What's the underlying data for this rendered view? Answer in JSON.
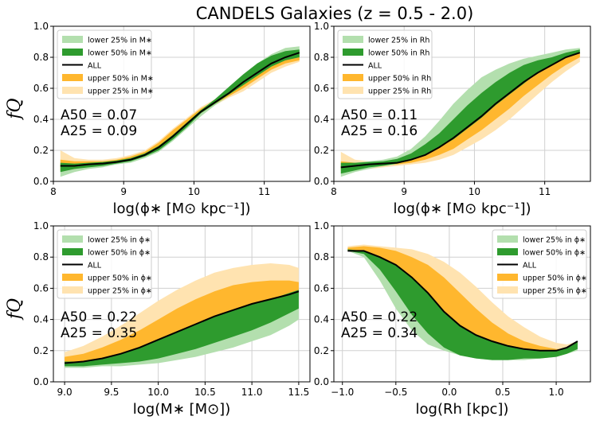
{
  "figure_title": "CANDELS Galaxies (z = 0.5 - 2.0)",
  "colors": {
    "lower25": "#b3dfae",
    "lower50": "#2e9b2e",
    "all": "#000000",
    "upper50": "#ffb72e",
    "upper25": "#ffe3b0",
    "grid": "#d0d0d0"
  },
  "chart_data": [
    {
      "id": "top-left",
      "type": "area",
      "xlabel": "log(ϕ∗ [M⊙ kpc⁻¹])",
      "ylabel": "fQ",
      "xlim": [
        8.0,
        11.65
      ],
      "ylim": [
        0.0,
        1.0
      ],
      "xticks": [
        "8",
        "9",
        "10",
        "11"
      ],
      "yticks": [
        "0.0",
        "0.2",
        "0.4",
        "0.6",
        "0.8",
        "1.0"
      ],
      "annotation": [
        "A50 = 0.07",
        "A25 = 0.09"
      ],
      "legend": [
        "lower 25%  in M∗",
        "lower 50%  in M∗",
        "ALL",
        "upper 50%  in M∗",
        "upper 25%  in M∗"
      ],
      "legend_loc": "upper-left",
      "x": [
        8.1,
        8.3,
        8.5,
        8.7,
        8.9,
        9.1,
        9.3,
        9.5,
        9.7,
        9.9,
        10.1,
        10.3,
        10.5,
        10.7,
        10.9,
        11.1,
        11.3,
        11.5
      ],
      "series": [
        {
          "name": "ALL",
          "values": [
            0.1,
            0.1,
            0.11,
            0.115,
            0.125,
            0.14,
            0.17,
            0.22,
            0.29,
            0.37,
            0.45,
            0.51,
            0.57,
            0.64,
            0.7,
            0.76,
            0.8,
            0.83
          ]
        },
        {
          "name": "lower 25% low",
          "values": [
            0.03,
            0.06,
            0.08,
            0.09,
            0.11,
            0.12,
            0.15,
            0.19,
            0.26,
            0.34,
            0.42,
            0.49,
            0.55,
            0.61,
            0.67,
            0.72,
            0.77,
            0.79
          ]
        },
        {
          "name": "lower 25% high",
          "values": [
            0.11,
            0.11,
            0.12,
            0.12,
            0.13,
            0.14,
            0.17,
            0.21,
            0.28,
            0.36,
            0.45,
            0.52,
            0.6,
            0.68,
            0.76,
            0.82,
            0.86,
            0.87
          ]
        },
        {
          "name": "lower 50% low",
          "values": [
            0.06,
            0.08,
            0.09,
            0.1,
            0.115,
            0.13,
            0.16,
            0.2,
            0.27,
            0.35,
            0.44,
            0.5,
            0.56,
            0.62,
            0.68,
            0.74,
            0.78,
            0.8
          ]
        },
        {
          "name": "lower 50% high",
          "values": [
            0.12,
            0.115,
            0.12,
            0.125,
            0.135,
            0.15,
            0.18,
            0.23,
            0.3,
            0.38,
            0.46,
            0.53,
            0.61,
            0.69,
            0.76,
            0.81,
            0.84,
            0.85
          ]
        },
        {
          "name": "upper 50% low",
          "values": [
            0.07,
            0.08,
            0.1,
            0.11,
            0.12,
            0.14,
            0.17,
            0.22,
            0.29,
            0.37,
            0.44,
            0.5,
            0.55,
            0.6,
            0.66,
            0.72,
            0.76,
            0.78
          ]
        },
        {
          "name": "upper 50% high",
          "values": [
            0.14,
            0.13,
            0.13,
            0.13,
            0.14,
            0.16,
            0.19,
            0.25,
            0.33,
            0.4,
            0.47,
            0.52,
            0.58,
            0.64,
            0.7,
            0.76,
            0.8,
            0.82
          ]
        },
        {
          "name": "upper 25% low",
          "values": [
            0.06,
            0.07,
            0.09,
            0.1,
            0.11,
            0.13,
            0.16,
            0.21,
            0.28,
            0.36,
            0.43,
            0.49,
            0.54,
            0.58,
            0.64,
            0.7,
            0.74,
            0.77
          ]
        },
        {
          "name": "upper 25% high",
          "values": [
            0.2,
            0.15,
            0.14,
            0.14,
            0.15,
            0.17,
            0.2,
            0.26,
            0.34,
            0.41,
            0.48,
            0.53,
            0.59,
            0.65,
            0.71,
            0.77,
            0.81,
            0.83
          ]
        }
      ]
    },
    {
      "id": "top-right",
      "type": "area",
      "xlabel": "log(ϕ∗ [M⊙ kpc⁻¹])",
      "ylabel": "",
      "xlim": [
        8.0,
        11.65
      ],
      "ylim": [
        0.0,
        1.0
      ],
      "xticks": [
        "8",
        "9",
        "10",
        "11"
      ],
      "yticks": [
        "0.0",
        "0.2",
        "0.4",
        "0.6",
        "0.8",
        "1.0"
      ],
      "annotation": [
        "A50 = 0.11",
        "A25 = 0.16"
      ],
      "legend": [
        "lower 25%  in Rh",
        "lower 50%  in Rh",
        "ALL",
        "upper 50%  in Rh",
        "upper 25%  in Rh"
      ],
      "legend_loc": "upper-left",
      "x": [
        8.1,
        8.3,
        8.5,
        8.7,
        8.9,
        9.1,
        9.3,
        9.5,
        9.7,
        9.9,
        10.1,
        10.3,
        10.5,
        10.7,
        10.9,
        11.1,
        11.3,
        11.5
      ],
      "series": [
        {
          "name": "ALL",
          "values": [
            0.09,
            0.1,
            0.11,
            0.115,
            0.12,
            0.14,
            0.17,
            0.22,
            0.28,
            0.35,
            0.42,
            0.5,
            0.57,
            0.64,
            0.7,
            0.75,
            0.8,
            0.83
          ]
        },
        {
          "name": "lower 25% low",
          "values": [
            0.03,
            0.06,
            0.08,
            0.1,
            0.11,
            0.13,
            0.16,
            0.21,
            0.26,
            0.32,
            0.39,
            0.47,
            0.55,
            0.63,
            0.7,
            0.76,
            0.81,
            0.84
          ]
        },
        {
          "name": "lower 25% high",
          "values": [
            0.11,
            0.12,
            0.13,
            0.14,
            0.16,
            0.21,
            0.29,
            0.39,
            0.5,
            0.59,
            0.67,
            0.72,
            0.76,
            0.79,
            0.81,
            0.83,
            0.85,
            0.86
          ]
        },
        {
          "name": "lower 50% low",
          "values": [
            0.05,
            0.07,
            0.09,
            0.1,
            0.115,
            0.135,
            0.17,
            0.22,
            0.27,
            0.34,
            0.41,
            0.49,
            0.56,
            0.63,
            0.7,
            0.75,
            0.8,
            0.83
          ]
        },
        {
          "name": "lower 50% high",
          "values": [
            0.12,
            0.12,
            0.125,
            0.13,
            0.145,
            0.18,
            0.24,
            0.31,
            0.4,
            0.49,
            0.57,
            0.64,
            0.7,
            0.75,
            0.78,
            0.8,
            0.83,
            0.85
          ]
        },
        {
          "name": "upper 50% low",
          "values": [
            0.07,
            0.08,
            0.1,
            0.11,
            0.11,
            0.12,
            0.14,
            0.17,
            0.21,
            0.27,
            0.33,
            0.4,
            0.47,
            0.55,
            0.62,
            0.69,
            0.75,
            0.8
          ]
        },
        {
          "name": "upper 50% high",
          "values": [
            0.13,
            0.12,
            0.12,
            0.12,
            0.13,
            0.14,
            0.17,
            0.22,
            0.28,
            0.35,
            0.42,
            0.5,
            0.57,
            0.64,
            0.7,
            0.75,
            0.8,
            0.83
          ]
        },
        {
          "name": "upper 25% low",
          "values": [
            0.06,
            0.07,
            0.08,
            0.09,
            0.1,
            0.11,
            0.12,
            0.14,
            0.17,
            0.22,
            0.27,
            0.33,
            0.4,
            0.48,
            0.56,
            0.64,
            0.71,
            0.77
          ]
        },
        {
          "name": "upper 25% high",
          "values": [
            0.19,
            0.14,
            0.13,
            0.13,
            0.14,
            0.15,
            0.17,
            0.22,
            0.28,
            0.35,
            0.42,
            0.49,
            0.56,
            0.63,
            0.69,
            0.74,
            0.79,
            0.83
          ]
        }
      ]
    },
    {
      "id": "bottom-left",
      "type": "area",
      "xlabel": "log(M∗ [M⊙])",
      "ylabel": "fQ",
      "xlim": [
        8.88,
        11.62
      ],
      "ylim": [
        0.0,
        1.0
      ],
      "xticks": [
        "9.0",
        "9.5",
        "10.0",
        "10.5",
        "11.0",
        "11.5"
      ],
      "yticks": [
        "0.0",
        "0.2",
        "0.4",
        "0.6",
        "0.8",
        "1.0"
      ],
      "annotation": [
        "A50 = 0.22",
        "A25 = 0.35"
      ],
      "legend": [
        "lower 25%  in ϕ∗",
        "lower 50%  in ϕ∗",
        "ALL",
        "upper 50%  in ϕ∗",
        "upper 25%  in ϕ∗"
      ],
      "legend_loc": "upper-left",
      "x": [
        9.0,
        9.2,
        9.4,
        9.6,
        9.8,
        10.0,
        10.2,
        10.4,
        10.6,
        10.8,
        11.0,
        11.2,
        11.4,
        11.5
      ],
      "series": [
        {
          "name": "ALL",
          "values": [
            0.12,
            0.13,
            0.15,
            0.18,
            0.22,
            0.27,
            0.32,
            0.37,
            0.42,
            0.46,
            0.5,
            0.53,
            0.56,
            0.58
          ]
        },
        {
          "name": "lower 25% low",
          "values": [
            0.09,
            0.09,
            0.1,
            0.1,
            0.11,
            0.12,
            0.14,
            0.16,
            0.19,
            0.22,
            0.26,
            0.3,
            0.36,
            0.4
          ]
        },
        {
          "name": "lower 25% high",
          "values": [
            0.12,
            0.12,
            0.14,
            0.16,
            0.19,
            0.23,
            0.28,
            0.33,
            0.38,
            0.42,
            0.46,
            0.5,
            0.54,
            0.57
          ]
        },
        {
          "name": "lower 50% low",
          "values": [
            0.1,
            0.1,
            0.11,
            0.12,
            0.13,
            0.15,
            0.18,
            0.21,
            0.25,
            0.29,
            0.33,
            0.38,
            0.44,
            0.47
          ]
        },
        {
          "name": "lower 50% high",
          "values": [
            0.13,
            0.13,
            0.15,
            0.18,
            0.22,
            0.27,
            0.32,
            0.37,
            0.42,
            0.46,
            0.5,
            0.53,
            0.57,
            0.59
          ]
        },
        {
          "name": "upper 50% low",
          "values": [
            0.12,
            0.13,
            0.15,
            0.18,
            0.22,
            0.27,
            0.32,
            0.37,
            0.42,
            0.46,
            0.5,
            0.53,
            0.56,
            0.58
          ]
        },
        {
          "name": "upper 50% high",
          "values": [
            0.16,
            0.18,
            0.22,
            0.27,
            0.33,
            0.4,
            0.47,
            0.53,
            0.58,
            0.62,
            0.64,
            0.65,
            0.65,
            0.64
          ]
        },
        {
          "name": "upper 25% low",
          "values": [
            0.12,
            0.13,
            0.15,
            0.18,
            0.22,
            0.27,
            0.32,
            0.37,
            0.42,
            0.46,
            0.5,
            0.53,
            0.56,
            0.58
          ]
        },
        {
          "name": "upper 25% high",
          "values": [
            0.19,
            0.23,
            0.29,
            0.36,
            0.44,
            0.52,
            0.59,
            0.65,
            0.7,
            0.73,
            0.75,
            0.76,
            0.75,
            0.73
          ]
        }
      ]
    },
    {
      "id": "bottom-right",
      "type": "area",
      "xlabel": "log(Rh [kpc])",
      "ylabel": "",
      "xlim": [
        -1.08,
        1.32
      ],
      "ylim": [
        0.0,
        1.0
      ],
      "xticks": [
        "−1.0",
        "−0.5",
        "0.0",
        "0.5",
        "1.0"
      ],
      "yticks": [
        "0.0",
        "0.2",
        "0.4",
        "0.6",
        "0.8",
        "1.0"
      ],
      "annotation": [
        "A50 = 0.22",
        "A25 = 0.34"
      ],
      "legend": [
        "lower 25%  in ϕ∗",
        "lower 50%  in ϕ∗",
        "ALL",
        "upper 50%  in ϕ∗",
        "upper 25%  in ϕ∗"
      ],
      "legend_loc": "upper-right",
      "x": [
        -0.95,
        -0.8,
        -0.65,
        -0.5,
        -0.35,
        -0.2,
        -0.05,
        0.1,
        0.25,
        0.4,
        0.55,
        0.7,
        0.85,
        1.0,
        1.1,
        1.2
      ],
      "series": [
        {
          "name": "ALL",
          "values": [
            0.84,
            0.84,
            0.8,
            0.75,
            0.67,
            0.57,
            0.45,
            0.36,
            0.3,
            0.26,
            0.23,
            0.21,
            0.2,
            0.2,
            0.22,
            0.26
          ]
        },
        {
          "name": "lower 25% low",
          "values": [
            0.84,
            0.8,
            0.65,
            0.47,
            0.33,
            0.24,
            0.2,
            0.17,
            0.15,
            0.14,
            0.14,
            0.14,
            0.15,
            0.16,
            0.18,
            0.2
          ]
        },
        {
          "name": "lower 25% high",
          "values": [
            0.85,
            0.84,
            0.8,
            0.75,
            0.67,
            0.57,
            0.45,
            0.36,
            0.3,
            0.26,
            0.23,
            0.21,
            0.2,
            0.2,
            0.22,
            0.26
          ]
        },
        {
          "name": "lower 50% low",
          "values": [
            0.84,
            0.82,
            0.72,
            0.58,
            0.43,
            0.31,
            0.22,
            0.17,
            0.15,
            0.14,
            0.14,
            0.15,
            0.15,
            0.16,
            0.18,
            0.21
          ]
        },
        {
          "name": "lower 50% high",
          "values": [
            0.85,
            0.84,
            0.8,
            0.75,
            0.67,
            0.57,
            0.45,
            0.36,
            0.3,
            0.26,
            0.23,
            0.21,
            0.2,
            0.2,
            0.22,
            0.26
          ]
        },
        {
          "name": "upper 50% low",
          "values": [
            0.84,
            0.84,
            0.8,
            0.75,
            0.67,
            0.57,
            0.45,
            0.36,
            0.3,
            0.26,
            0.23,
            0.21,
            0.2,
            0.2,
            0.22,
            0.26
          ]
        },
        {
          "name": "upper 50% high",
          "values": [
            0.86,
            0.87,
            0.86,
            0.84,
            0.8,
            0.75,
            0.67,
            0.57,
            0.47,
            0.38,
            0.31,
            0.26,
            0.23,
            0.21,
            0.21,
            0.24
          ]
        },
        {
          "name": "upper 25% low",
          "values": [
            0.84,
            0.84,
            0.8,
            0.75,
            0.67,
            0.57,
            0.45,
            0.36,
            0.3,
            0.26,
            0.23,
            0.21,
            0.2,
            0.2,
            0.22,
            0.26
          ]
        },
        {
          "name": "upper 25% high",
          "values": [
            0.87,
            0.88,
            0.87,
            0.86,
            0.85,
            0.82,
            0.77,
            0.7,
            0.61,
            0.51,
            0.42,
            0.35,
            0.29,
            0.25,
            0.24,
            0.26
          ]
        }
      ]
    }
  ]
}
